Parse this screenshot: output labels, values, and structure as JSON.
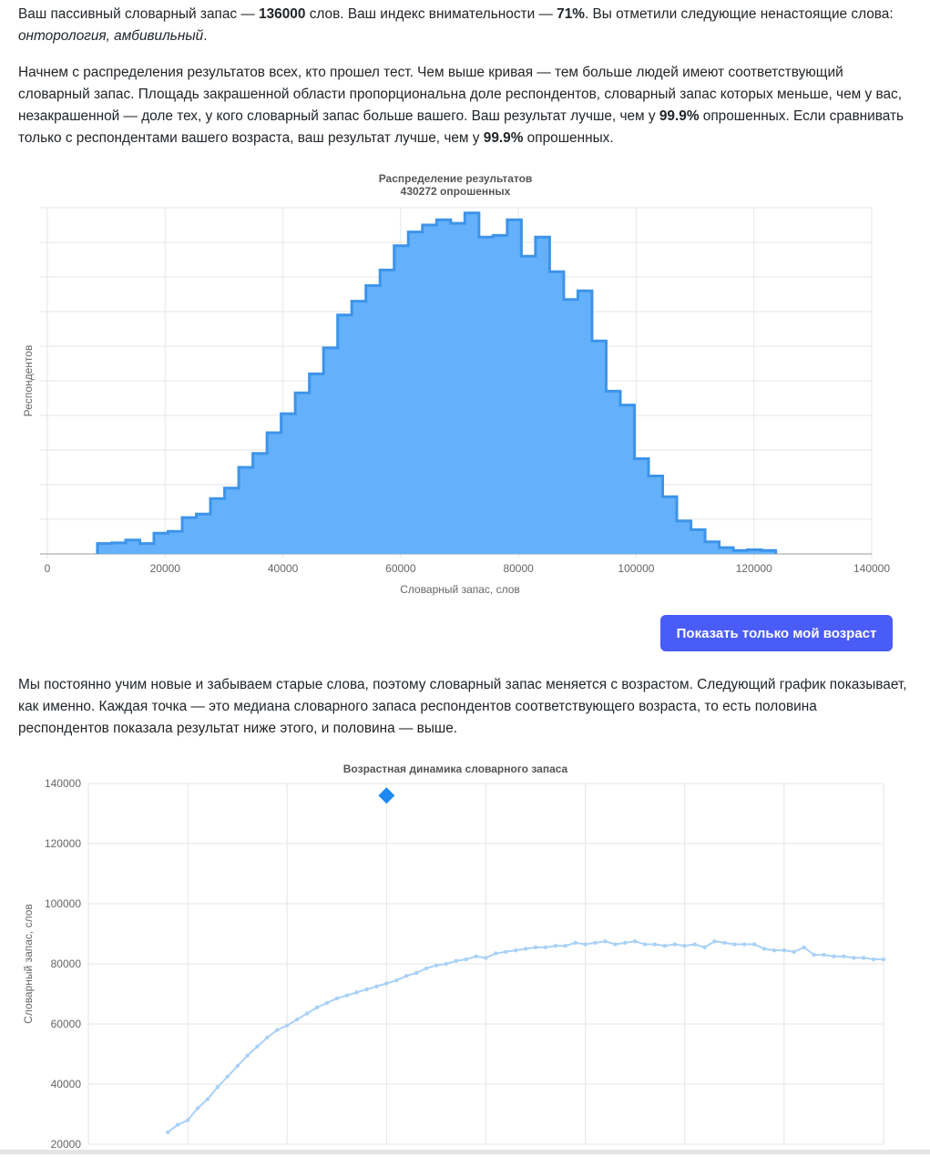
{
  "intro": {
    "t1": "Ваш пассивный словарный запас — ",
    "vocab": "136000",
    "t2": " слов. Ваш индекс внимательности — ",
    "attention": "71%",
    "t3": ". Вы отметили следующие ненастоящие слова: ",
    "fake_words": "онторология, амбивильный",
    "t4": "."
  },
  "distribution_text": {
    "t1": "Начнем с распределения результатов всех, кто прошел тест. Чем выше кривая — тем больше людей имеют соответствующий словарный запас. Площадь закрашенной области пропорциональна доле респондентов, словарный запас которых меньше, чем у вас, незакрашенной — доле тех, у кого словарный запас больше вашего. Ваш результат лучше, чем у ",
    "pct_all": "99.9%",
    "t2": " опрошенных. Если сравнивать только с респондентами вашего возраста, ваш результат лучше, чем у ",
    "pct_age": "99.9%",
    "t3": " опрошенных."
  },
  "show_age_button": "Показать только мой возраст",
  "age_text": "Мы постоянно учим новые и забываем старые слова, поэтому словарный запас меняется с возрастом. Следующий график показывает, как именно. Каждая точка — это медиана словарного запаса респондентов соответствующего возраста, то есть половина респондентов показала результат ниже этого, и половина — выше.",
  "colors": {
    "fill": "#64b0fa",
    "stroke": "#3d94e9",
    "line": "#a9d1f7",
    "marker": "#1e88f0",
    "button": "#4a5cf7"
  },
  "chart_data": [
    {
      "type": "area",
      "title": "Распределение результатов",
      "subtitle": "430272 опрошенных",
      "xlabel": "Словарный запас, слов",
      "ylabel": "Респондентов",
      "xlim": [
        0,
        140000
      ],
      "ylim": [
        0,
        100
      ],
      "x_ticks": [
        "0",
        "20000",
        "40000",
        "60000",
        "80000",
        "100000",
        "120000",
        "140000"
      ],
      "grid": true,
      "step_width": 2400,
      "bins": [
        {
          "x": 8500,
          "y": 3
        },
        {
          "x": 10900,
          "y": 3.2
        },
        {
          "x": 13300,
          "y": 4
        },
        {
          "x": 15700,
          "y": 3
        },
        {
          "x": 18100,
          "y": 6
        },
        {
          "x": 20500,
          "y": 6.5
        },
        {
          "x": 22900,
          "y": 10.5
        },
        {
          "x": 25300,
          "y": 11.5
        },
        {
          "x": 27700,
          "y": 16
        },
        {
          "x": 30100,
          "y": 19
        },
        {
          "x": 32500,
          "y": 25
        },
        {
          "x": 34900,
          "y": 29
        },
        {
          "x": 37300,
          "y": 35
        },
        {
          "x": 39700,
          "y": 40.5
        },
        {
          "x": 42100,
          "y": 46.5
        },
        {
          "x": 44500,
          "y": 52
        },
        {
          "x": 46900,
          "y": 59.5
        },
        {
          "x": 49300,
          "y": 69
        },
        {
          "x": 51700,
          "y": 73
        },
        {
          "x": 54100,
          "y": 77.5
        },
        {
          "x": 56500,
          "y": 82
        },
        {
          "x": 58900,
          "y": 89
        },
        {
          "x": 61300,
          "y": 93
        },
        {
          "x": 63700,
          "y": 95
        },
        {
          "x": 66100,
          "y": 96.5
        },
        {
          "x": 68500,
          "y": 95.5
        },
        {
          "x": 70900,
          "y": 98.5
        },
        {
          "x": 73300,
          "y": 91.5
        },
        {
          "x": 75700,
          "y": 92
        },
        {
          "x": 78100,
          "y": 96.5
        },
        {
          "x": 80500,
          "y": 86
        },
        {
          "x": 82900,
          "y": 91.5
        },
        {
          "x": 85300,
          "y": 81.5
        },
        {
          "x": 87700,
          "y": 73.5
        },
        {
          "x": 90100,
          "y": 76
        },
        {
          "x": 92500,
          "y": 61.5
        },
        {
          "x": 94900,
          "y": 47
        },
        {
          "x": 97300,
          "y": 43
        },
        {
          "x": 99700,
          "y": 27.5
        },
        {
          "x": 102100,
          "y": 22.5
        },
        {
          "x": 104500,
          "y": 16.5
        },
        {
          "x": 106900,
          "y": 9.5
        },
        {
          "x": 109300,
          "y": 7
        },
        {
          "x": 111700,
          "y": 3.5
        },
        {
          "x": 114100,
          "y": 1.8
        },
        {
          "x": 116500,
          "y": 1
        },
        {
          "x": 118900,
          "y": 1.2
        },
        {
          "x": 121300,
          "y": 1
        }
      ],
      "x_end": 123700
    },
    {
      "type": "line",
      "title": "Возрастная динамика словарного запаса",
      "xlabel": "",
      "ylabel": "Словарный запас, слов",
      "xlim": [
        5,
        85
      ],
      "ylim": [
        20000,
        140000
      ],
      "y_ticks": [
        "20000",
        "40000",
        "60000",
        "80000",
        "100000",
        "120000",
        "140000"
      ],
      "grid": true,
      "x": [
        13,
        14,
        15,
        16,
        17,
        18,
        19,
        20,
        21,
        22,
        23,
        24,
        25,
        26,
        27,
        28,
        29,
        30,
        31,
        32,
        33,
        34,
        35,
        36,
        37,
        38,
        39,
        40,
        41,
        42,
        43,
        44,
        45,
        46,
        47,
        48,
        49,
        50,
        51,
        52,
        53,
        54,
        55,
        56,
        57,
        58,
        59,
        60,
        61,
        62,
        63,
        64,
        65,
        66,
        67,
        68,
        69,
        70,
        71,
        72,
        73,
        74,
        75,
        76,
        77,
        78,
        79,
        80,
        81,
        82,
        83,
        84,
        85
      ],
      "values": [
        24000,
        26500,
        28000,
        32000,
        35000,
        39000,
        42500,
        46000,
        49500,
        52500,
        55500,
        58000,
        59500,
        61500,
        63500,
        65500,
        67000,
        68500,
        69500,
        70500,
        71500,
        72500,
        73500,
        74500,
        76000,
        77000,
        78500,
        79500,
        80000,
        81000,
        81500,
        82500,
        82000,
        83500,
        84000,
        84500,
        85000,
        85500,
        85500,
        86000,
        86000,
        87000,
        86500,
        87000,
        87500,
        86500,
        87000,
        87500,
        86500,
        86500,
        86000,
        86500,
        86000,
        86500,
        85500,
        87500,
        87000,
        86500,
        86500,
        86500,
        85000,
        84500,
        84500,
        84000,
        85500,
        83000,
        83000,
        82500,
        82500,
        82000,
        82000,
        81500,
        81500
      ],
      "user_point": {
        "x": 35,
        "y": 136000
      }
    }
  ]
}
